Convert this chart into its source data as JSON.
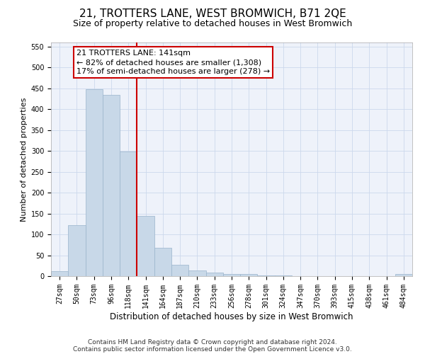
{
  "title": "21, TROTTERS LANE, WEST BROMWICH, B71 2QE",
  "subtitle": "Size of property relative to detached houses in West Bromwich",
  "xlabel": "Distribution of detached houses by size in West Bromwich",
  "ylabel": "Number of detached properties",
  "categories": [
    "27sqm",
    "50sqm",
    "73sqm",
    "96sqm",
    "118sqm",
    "141sqm",
    "164sqm",
    "187sqm",
    "210sqm",
    "233sqm",
    "256sqm",
    "278sqm",
    "301sqm",
    "324sqm",
    "347sqm",
    "370sqm",
    "393sqm",
    "415sqm",
    "438sqm",
    "461sqm",
    "484sqm"
  ],
  "values": [
    12,
    123,
    448,
    435,
    298,
    144,
    68,
    27,
    13,
    8,
    5,
    5,
    1,
    1,
    0,
    0,
    0,
    0,
    0,
    0,
    5
  ],
  "bar_color": "#c8d8e8",
  "bar_edgecolor": "#9ab4cc",
  "highlight_index": 5,
  "highlight_color": "#cc0000",
  "annotation_line1": "21 TROTTERS LANE: 141sqm",
  "annotation_line2": "← 82% of detached houses are smaller (1,308)",
  "annotation_line3": "17% of semi-detached houses are larger (278) →",
  "annotation_box_color": "#ffffff",
  "annotation_box_edgecolor": "#cc0000",
  "ylim": [
    0,
    560
  ],
  "yticks": [
    0,
    50,
    100,
    150,
    200,
    250,
    300,
    350,
    400,
    450,
    500,
    550
  ],
  "footnote1": "Contains HM Land Registry data © Crown copyright and database right 2024.",
  "footnote2": "Contains public sector information licensed under the Open Government Licence v3.0.",
  "title_fontsize": 11,
  "subtitle_fontsize": 9,
  "xlabel_fontsize": 8.5,
  "ylabel_fontsize": 8,
  "tick_fontsize": 7,
  "annotation_fontsize": 8,
  "footnote_fontsize": 6.5,
  "grid_color": "#ccd8ec",
  "background_color": "#eef2fa"
}
